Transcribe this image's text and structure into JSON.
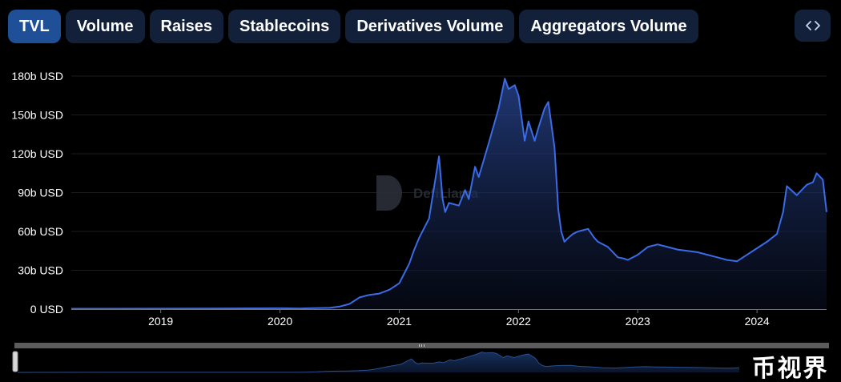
{
  "tabs": [
    {
      "label": "TVL",
      "active": true
    },
    {
      "label": "Volume",
      "active": false
    },
    {
      "label": "Raises",
      "active": false
    },
    {
      "label": "Stablecoins",
      "active": false
    },
    {
      "label": "Derivatives Volume",
      "active": false
    },
    {
      "label": "Aggregators Volume",
      "active": false
    }
  ],
  "embed_button": {
    "icon": "code-brackets-icon"
  },
  "watermark": {
    "text": "DefiLlama"
  },
  "overlay_badge": {
    "text": "币视界"
  },
  "colors": {
    "line": "#3b6be6",
    "tab_active": "#1f4f96",
    "tab_inactive": "#12203a",
    "background": "#000000",
    "gridline": "#1c1c1c",
    "slider_track": "#5c5c5c",
    "navigator_area": "#1a3566"
  },
  "chart_data": {
    "type": "area",
    "title": "",
    "xlabel": "",
    "ylabel": "",
    "y_unit": "b USD",
    "ylim": [
      0,
      180
    ],
    "xlim": [
      "2018-04",
      "2024-08"
    ],
    "grid": true,
    "yticks": [
      {
        "value": 0,
        "label": "0 USD"
      },
      {
        "value": 30,
        "label": "30b USD"
      },
      {
        "value": 60,
        "label": "60b USD"
      },
      {
        "value": 90,
        "label": "90b USD"
      },
      {
        "value": 120,
        "label": "120b USD"
      },
      {
        "value": 150,
        "label": "150b USD"
      },
      {
        "value": 180,
        "label": "180b USD"
      }
    ],
    "xticks": [
      {
        "value": 2019.0,
        "label": "2019"
      },
      {
        "value": 2020.0,
        "label": "2020"
      },
      {
        "value": 2021.0,
        "label": "2021"
      },
      {
        "value": 2022.0,
        "label": "2022"
      },
      {
        "value": 2023.0,
        "label": "2023"
      },
      {
        "value": 2024.0,
        "label": "2024"
      }
    ],
    "series": [
      {
        "x": [
          "2018-04",
          "2019-01",
          "2019-06",
          "2020-01",
          "2020-03",
          "2020-06",
          "2020-07",
          "2020-08",
          "2020-09",
          "2020-10",
          "2020-11",
          "2020-12",
          "2021-01",
          "2021-02",
          "2021-02-15",
          "2021-03",
          "2021-04",
          "2021-05-01",
          "2021-05-12",
          "2021-05-20",
          "2021-06",
          "2021-07",
          "2021-07-20",
          "2021-08",
          "2021-08-20",
          "2021-09",
          "2021-10",
          "2021-11",
          "2021-11-20",
          "2021-12",
          "2021-12-20",
          "2022-01",
          "2022-01-20",
          "2022-02",
          "2022-02-20",
          "2022-03",
          "2022-03-20",
          "2022-04",
          "2022-04-20",
          "2022-05",
          "2022-05-10",
          "2022-05-20",
          "2022-06",
          "2022-06-15",
          "2022-07",
          "2022-08",
          "2022-08-20",
          "2022-09",
          "2022-10",
          "2022-11",
          "2022-11-20",
          "2022-12",
          "2023-01",
          "2023-02",
          "2023-03",
          "2023-04",
          "2023-05",
          "2023-06",
          "2023-07",
          "2023-08",
          "2023-09",
          "2023-10",
          "2023-11",
          "2023-12",
          "2024-01",
          "2024-02",
          "2024-03",
          "2024-03-20",
          "2024-04",
          "2024-05",
          "2024-06",
          "2024-06-20",
          "2024-07",
          "2024-07-20",
          "2024-08"
        ],
        "values": [
          0.3,
          0.4,
          0.5,
          0.7,
          0.5,
          1,
          2,
          4,
          9,
          11,
          12,
          15,
          20,
          35,
          45,
          55,
          70,
          118,
          85,
          75,
          82,
          80,
          92,
          85,
          110,
          102,
          128,
          155,
          178,
          170,
          173,
          165,
          130,
          145,
          130,
          140,
          155,
          160,
          125,
          77,
          60,
          52,
          55,
          58,
          60,
          62,
          55,
          52,
          48,
          40,
          39,
          38,
          42,
          48,
          50,
          48,
          46,
          45,
          44,
          42,
          40,
          38,
          37,
          42,
          47,
          52,
          58,
          75,
          95,
          88,
          96,
          98,
          105,
          100,
          75
        ]
      }
    ]
  }
}
